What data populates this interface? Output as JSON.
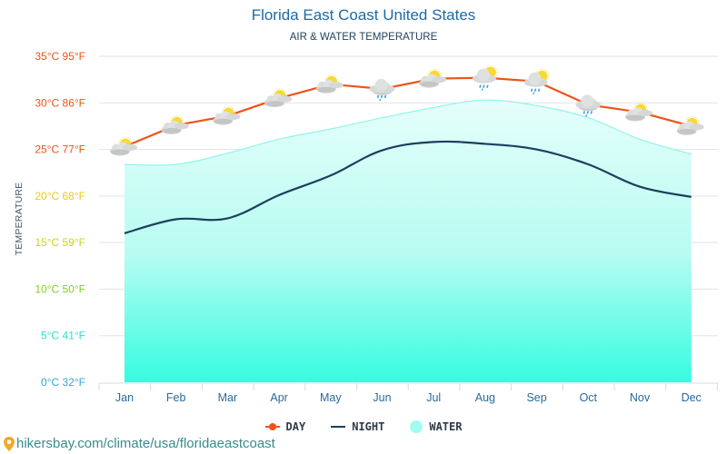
{
  "page": {
    "title": "Florida East Coast United States",
    "subtitle": "AIR & WATER TEMPERATURE",
    "footer_link": "hikersbay.com/climate/usa/floridaeastcoast"
  },
  "legend": {
    "day": "DAY",
    "night": "NIGHT",
    "water": "WATER"
  },
  "colors": {
    "day": "#f0521a",
    "night": "#1c3f5e",
    "water_top": "#d8fdf8",
    "water_bottom": "#35fce0",
    "water_line": "#8ef5ea",
    "grid": "#e2e2e2",
    "title": "#1a6aa8",
    "month_label": "#2a6a9a"
  },
  "chart_data": {
    "type": "line",
    "title": "Florida East Coast United States",
    "subtitle": "AIR & WATER TEMPERATURE",
    "xlabel": "",
    "ylabel": "TEMPERATURE",
    "ylim": [
      0,
      35
    ],
    "grid": true,
    "legend_position": "bottom",
    "categories": [
      "Jan",
      "Feb",
      "Mar",
      "Apr",
      "May",
      "Jun",
      "Jul",
      "Aug",
      "Sep",
      "Oct",
      "Nov",
      "Dec"
    ],
    "y_ticks": [
      {
        "c": 35,
        "label": "35°C 95°F",
        "color": "#f0521a"
      },
      {
        "c": 30,
        "label": "30°C 86°F",
        "color": "#f0521a"
      },
      {
        "c": 25,
        "label": "25°C 77°F",
        "color": "#f0521a"
      },
      {
        "c": 20,
        "label": "20°C 68°F",
        "color": "#e8cc14"
      },
      {
        "c": 15,
        "label": "15°C 59°F",
        "color": "#c9d614"
      },
      {
        "c": 10,
        "label": "10°C 50°F",
        "color": "#7ed321"
      },
      {
        "c": 5,
        "label": "5°C 41°F",
        "color": "#2ee0c8"
      },
      {
        "c": 0,
        "label": "0°C 32°F",
        "color": "#2ea8d8"
      }
    ],
    "series": [
      {
        "name": "DAY",
        "type": "line",
        "values": [
          25.3,
          27.6,
          28.6,
          30.5,
          32.0,
          31.5,
          32.6,
          32.7,
          32.3,
          29.8,
          29.0,
          27.5
        ]
      },
      {
        "name": "NIGHT",
        "type": "line",
        "values": [
          16.0,
          17.5,
          17.6,
          20.1,
          22.2,
          24.9,
          25.8,
          25.6,
          25.0,
          23.4,
          21.0,
          19.9
        ]
      },
      {
        "name": "WATER",
        "type": "area",
        "values": [
          23.4,
          23.4,
          24.6,
          26.1,
          27.2,
          28.4,
          29.5,
          30.3,
          29.7,
          28.4,
          26.1,
          24.5
        ]
      }
    ],
    "weather_icons": [
      "partly-cloudy",
      "partly-cloudy",
      "partly-cloudy",
      "partly-cloudy",
      "partly-cloudy",
      "rain",
      "partly-cloudy",
      "rain-sun",
      "rain-sun",
      "rain",
      "partly-cloudy",
      "partly-cloudy"
    ]
  }
}
